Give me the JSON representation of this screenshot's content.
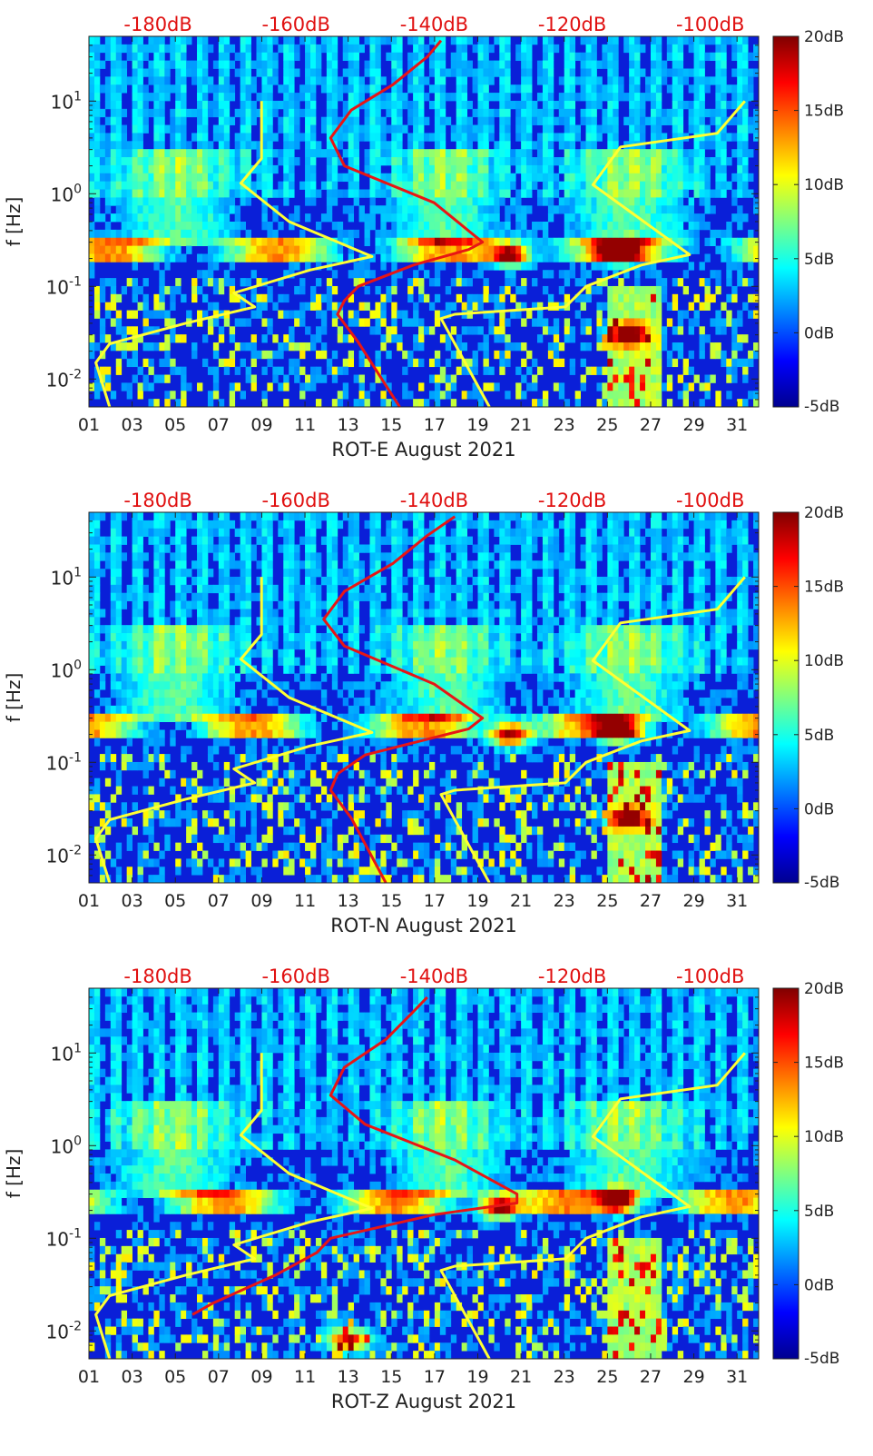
{
  "colors": {
    "psd_axis_label": "#e01010",
    "nlnm_curve": "#ffff33",
    "psd_curve": "#e81515",
    "axis": "#222222"
  },
  "chart_data": [
    {
      "type": "heatmap",
      "xlabel": "ROT-E August 2021",
      "ylabel": "f [Hz]",
      "x_range_days": [
        1,
        32
      ],
      "y_range_hz": [
        0.005,
        50
      ],
      "y_scale": "log",
      "x_ticks": [
        "01",
        "03",
        "05",
        "07",
        "09",
        "11",
        "13",
        "15",
        "17",
        "19",
        "21",
        "23",
        "25",
        "27",
        "29",
        "31"
      ],
      "y_ticks": [
        {
          "v": 0.01,
          "base": "10",
          "exp": "-2"
        },
        {
          "v": 0.1,
          "base": "10",
          "exp": "-1"
        },
        {
          "v": 1,
          "base": "10",
          "exp": "0"
        },
        {
          "v": 10,
          "base": "10",
          "exp": "1"
        }
      ],
      "colorbar": {
        "min_db": -5,
        "max_db": 20,
        "tick_labels": [
          "20dB",
          "15dB",
          "10dB",
          "5dB",
          "0dB",
          "-5dB"
        ],
        "colormap": "jet"
      },
      "psd_axis": {
        "range_db": [
          -190,
          -93
        ],
        "tick_labels": [
          "-180dB",
          "-160dB",
          "-140dB",
          "-120dB",
          "-100dB"
        ]
      },
      "nlnm_curve": [
        {
          "db": -187,
          "f": 0.005
        },
        {
          "db": -189,
          "f": 0.015
        },
        {
          "db": -187,
          "f": 0.024
        },
        {
          "db": -176,
          "f": 0.04
        },
        {
          "db": -166,
          "f": 0.06
        },
        {
          "db": -169,
          "f": 0.085
        },
        {
          "db": -158,
          "f": 0.15
        },
        {
          "db": -149,
          "f": 0.21
        },
        {
          "db": -161,
          "f": 0.5
        },
        {
          "db": -168,
          "f": 1.3
        },
        {
          "db": -165,
          "f": 2.4
        },
        {
          "db": -165,
          "f": 10
        }
      ],
      "nhnm_curve": [
        {
          "db": -132,
          "f": 0.005
        },
        {
          "db": -139,
          "f": 0.045
        },
        {
          "db": -137,
          "f": 0.05
        },
        {
          "db": -121,
          "f": 0.06
        },
        {
          "db": -118,
          "f": 0.1
        },
        {
          "db": -110,
          "f": 0.17
        },
        {
          "db": -103,
          "f": 0.22
        },
        {
          "db": -117,
          "f": 1.25
        },
        {
          "db": -113,
          "f": 3.2
        },
        {
          "db": -99,
          "f": 4.5
        },
        {
          "db": -95,
          "f": 10
        }
      ],
      "psd_curve": [
        {
          "db": -145,
          "f": 0.005
        },
        {
          "db": -151,
          "f": 0.025
        },
        {
          "db": -154,
          "f": 0.05
        },
        {
          "db": -153,
          "f": 0.07
        },
        {
          "db": -151,
          "f": 0.1
        },
        {
          "db": -143,
          "f": 0.17
        },
        {
          "db": -135,
          "f": 0.25
        },
        {
          "db": -133,
          "f": 0.3
        },
        {
          "db": -140,
          "f": 0.8
        },
        {
          "db": -153,
          "f": 2
        },
        {
          "db": -155,
          "f": 4
        },
        {
          "db": -152,
          "f": 8
        },
        {
          "db": -146,
          "f": 15
        },
        {
          "db": -141,
          "f": 30
        },
        {
          "db": -139,
          "f": 45
        }
      ],
      "hot_spots": [
        {
          "day": 20.5,
          "f": 0.22,
          "db": 18
        },
        {
          "day": 25.5,
          "f": 0.23,
          "db": 18
        },
        {
          "day": 26,
          "f": 0.03,
          "db": 14
        }
      ]
    },
    {
      "type": "heatmap",
      "xlabel": "ROT-N August 2021",
      "ylabel": "f [Hz]",
      "x_range_days": [
        1,
        32
      ],
      "y_range_hz": [
        0.005,
        50
      ],
      "y_scale": "log",
      "x_ticks": [
        "01",
        "03",
        "05",
        "07",
        "09",
        "11",
        "13",
        "15",
        "17",
        "19",
        "21",
        "23",
        "25",
        "27",
        "29",
        "31"
      ],
      "y_ticks": [
        {
          "v": 0.01,
          "base": "10",
          "exp": "-2"
        },
        {
          "v": 0.1,
          "base": "10",
          "exp": "-1"
        },
        {
          "v": 1,
          "base": "10",
          "exp": "0"
        },
        {
          "v": 10,
          "base": "10",
          "exp": "1"
        }
      ],
      "colorbar": {
        "min_db": -5,
        "max_db": 20,
        "tick_labels": [
          "20dB",
          "15dB",
          "10dB",
          "5dB",
          "0dB",
          "-5dB"
        ],
        "colormap": "jet"
      },
      "psd_axis": {
        "range_db": [
          -190,
          -93
        ],
        "tick_labels": [
          "-180dB",
          "-160dB",
          "-140dB",
          "-120dB",
          "-100dB"
        ]
      },
      "nlnm_curve": [
        {
          "db": -187,
          "f": 0.005
        },
        {
          "db": -189,
          "f": 0.015
        },
        {
          "db": -187,
          "f": 0.024
        },
        {
          "db": -176,
          "f": 0.04
        },
        {
          "db": -166,
          "f": 0.06
        },
        {
          "db": -169,
          "f": 0.085
        },
        {
          "db": -158,
          "f": 0.15
        },
        {
          "db": -149,
          "f": 0.21
        },
        {
          "db": -161,
          "f": 0.5
        },
        {
          "db": -168,
          "f": 1.3
        },
        {
          "db": -165,
          "f": 2.4
        },
        {
          "db": -165,
          "f": 10
        }
      ],
      "nhnm_curve": [
        {
          "db": -132,
          "f": 0.005
        },
        {
          "db": -139,
          "f": 0.045
        },
        {
          "db": -137,
          "f": 0.05
        },
        {
          "db": -121,
          "f": 0.06
        },
        {
          "db": -118,
          "f": 0.1
        },
        {
          "db": -110,
          "f": 0.17
        },
        {
          "db": -103,
          "f": 0.22
        },
        {
          "db": -117,
          "f": 1.25
        },
        {
          "db": -113,
          "f": 3.2
        },
        {
          "db": -99,
          "f": 4.5
        },
        {
          "db": -95,
          "f": 10
        }
      ],
      "psd_curve": [
        {
          "db": -147,
          "f": 0.005
        },
        {
          "db": -152,
          "f": 0.025
        },
        {
          "db": -155,
          "f": 0.05
        },
        {
          "db": -154,
          "f": 0.075
        },
        {
          "db": -150,
          "f": 0.12
        },
        {
          "db": -142,
          "f": 0.17
        },
        {
          "db": -135,
          "f": 0.23
        },
        {
          "db": -133,
          "f": 0.3
        },
        {
          "db": -140,
          "f": 0.7
        },
        {
          "db": -153,
          "f": 1.8
        },
        {
          "db": -156,
          "f": 3.5
        },
        {
          "db": -153,
          "f": 7
        },
        {
          "db": -146,
          "f": 14
        },
        {
          "db": -141,
          "f": 28
        },
        {
          "db": -137,
          "f": 45
        }
      ],
      "hot_spots": [
        {
          "day": 20.5,
          "f": 0.2,
          "db": 18
        },
        {
          "day": 25.5,
          "f": 0.22,
          "db": 18
        },
        {
          "day": 26,
          "f": 0.025,
          "db": 12
        }
      ]
    },
    {
      "type": "heatmap",
      "xlabel": "ROT-Z August 2021",
      "ylabel": "f [Hz]",
      "x_range_days": [
        1,
        32
      ],
      "y_range_hz": [
        0.005,
        50
      ],
      "y_scale": "log",
      "x_ticks": [
        "01",
        "03",
        "05",
        "07",
        "09",
        "11",
        "13",
        "15",
        "17",
        "19",
        "21",
        "23",
        "25",
        "27",
        "29",
        "31"
      ],
      "y_ticks": [
        {
          "v": 0.01,
          "base": "10",
          "exp": "-2"
        },
        {
          "v": 0.1,
          "base": "10",
          "exp": "-1"
        },
        {
          "v": 1,
          "base": "10",
          "exp": "0"
        },
        {
          "v": 10,
          "base": "10",
          "exp": "1"
        }
      ],
      "colorbar": {
        "min_db": -5,
        "max_db": 20,
        "tick_labels": [
          "20dB",
          "15dB",
          "10dB",
          "5dB",
          "0dB",
          "-5dB"
        ],
        "colormap": "jet"
      },
      "psd_axis": {
        "range_db": [
          -190,
          -93
        ],
        "tick_labels": [
          "-180dB",
          "-160dB",
          "-140dB",
          "-120dB",
          "-100dB"
        ]
      },
      "nlnm_curve": [
        {
          "db": -187,
          "f": 0.005
        },
        {
          "db": -189,
          "f": 0.015
        },
        {
          "db": -187,
          "f": 0.024
        },
        {
          "db": -176,
          "f": 0.04
        },
        {
          "db": -166,
          "f": 0.06
        },
        {
          "db": -169,
          "f": 0.085
        },
        {
          "db": -158,
          "f": 0.15
        },
        {
          "db": -149,
          "f": 0.21
        },
        {
          "db": -161,
          "f": 0.5
        },
        {
          "db": -168,
          "f": 1.3
        },
        {
          "db": -165,
          "f": 2.4
        },
        {
          "db": -165,
          "f": 10
        }
      ],
      "nhnm_curve": [
        {
          "db": -132,
          "f": 0.005
        },
        {
          "db": -139,
          "f": 0.045
        },
        {
          "db": -137,
          "f": 0.05
        },
        {
          "db": -121,
          "f": 0.06
        },
        {
          "db": -118,
          "f": 0.1
        },
        {
          "db": -110,
          "f": 0.17
        },
        {
          "db": -103,
          "f": 0.22
        },
        {
          "db": -117,
          "f": 1.25
        },
        {
          "db": -113,
          "f": 3.2
        },
        {
          "db": -99,
          "f": 4.5
        },
        {
          "db": -95,
          "f": 10
        }
      ],
      "psd_curve": [
        {
          "db": -175,
          "f": 0.015
        },
        {
          "db": -172,
          "f": 0.02
        },
        {
          "db": -163,
          "f": 0.04
        },
        {
          "db": -157,
          "f": 0.07
        },
        {
          "db": -155,
          "f": 0.1
        },
        {
          "db": -140,
          "f": 0.18
        },
        {
          "db": -128,
          "f": 0.24
        },
        {
          "db": -128,
          "f": 0.3
        },
        {
          "db": -137,
          "f": 0.7
        },
        {
          "db": -150,
          "f": 1.7
        },
        {
          "db": -155,
          "f": 3.5
        },
        {
          "db": -153,
          "f": 7
        },
        {
          "db": -147,
          "f": 14
        },
        {
          "db": -143,
          "f": 28
        },
        {
          "db": -141,
          "f": 40
        }
      ],
      "hot_spots": [
        {
          "day": 20,
          "f": 0.22,
          "db": 18
        },
        {
          "day": 25.5,
          "f": 0.25,
          "db": 18
        },
        {
          "day": 13,
          "f": 0.008,
          "db": 15
        }
      ]
    }
  ]
}
